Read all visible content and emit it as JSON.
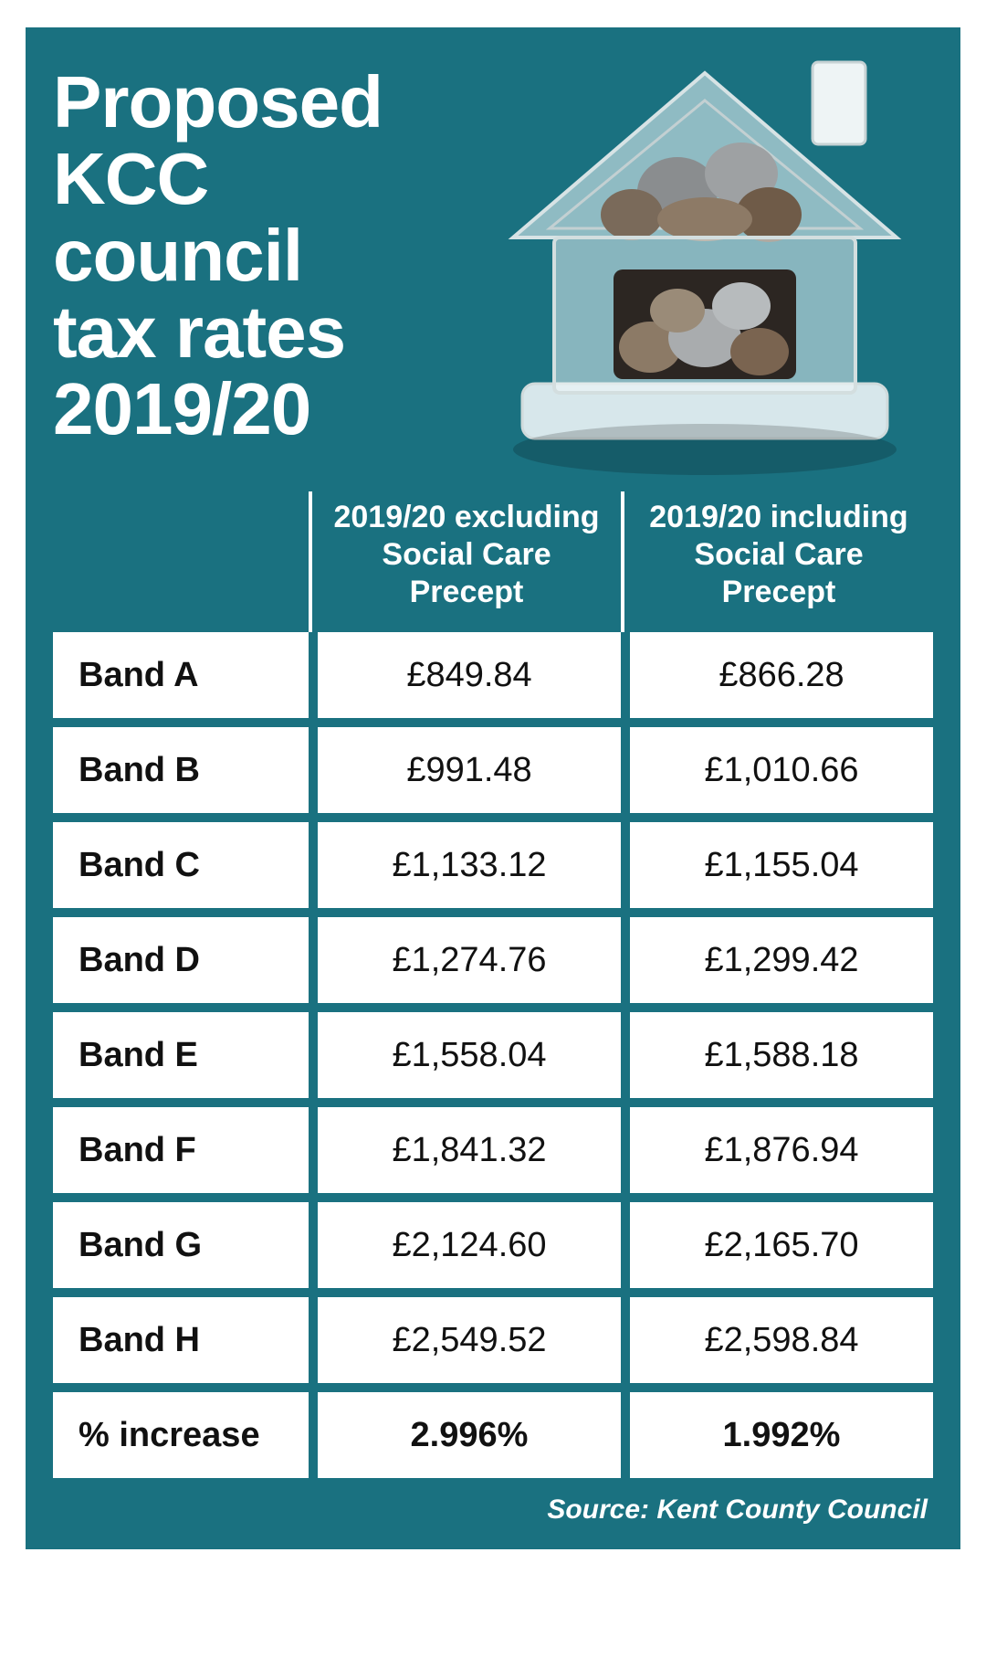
{
  "title_lines": [
    "Proposed",
    "KCC",
    "council",
    "tax rates",
    "2019/20"
  ],
  "headers": {
    "col1": "2019/20 excluding Social Care Precept",
    "col2": "2019/20 including Social Care Precept"
  },
  "rows": [
    {
      "band": "Band A",
      "excl": "£849.84",
      "incl": "£866.28",
      "bold": false
    },
    {
      "band": "Band B",
      "excl": "£991.48",
      "incl": "£1,010.66",
      "bold": false
    },
    {
      "band": "Band C",
      "excl": "£1,133.12",
      "incl": "£1,155.04",
      "bold": false
    },
    {
      "band": "Band D",
      "excl": "£1,274.76",
      "incl": "£1,299.42",
      "bold": false
    },
    {
      "band": "Band E",
      "excl": "£1,558.04",
      "incl": "£1,588.18",
      "bold": false
    },
    {
      "band": "Band F",
      "excl": "£1,841.32",
      "incl": "£1,876.94",
      "bold": false
    },
    {
      "band": "Band G",
      "excl": "£2,124.60",
      "incl": "£2,165.70",
      "bold": false
    },
    {
      "band": "Band H",
      "excl": "£2,549.52",
      "incl": "£2,598.84",
      "bold": false
    },
    {
      "band": "% increase",
      "excl": "2.996%",
      "incl": "1.992%",
      "bold": true
    }
  ],
  "source": "Source: Kent County Council",
  "colors": {
    "panel_bg": "#1a7180",
    "cell_bg": "#ffffff",
    "text": "#111111",
    "header_text": "#ffffff"
  }
}
